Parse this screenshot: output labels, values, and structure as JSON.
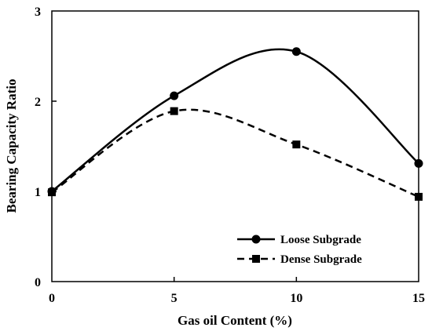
{
  "chart_data": {
    "type": "line",
    "title": "",
    "xlabel": "Gas  oil  Content  (%)",
    "ylabel": "Bearing  Capacity  Ratio",
    "xlim": [
      0,
      15
    ],
    "ylim": [
      0,
      3
    ],
    "x_ticks": [
      "0",
      "5",
      "10",
      "15"
    ],
    "y_ticks": [
      "0",
      "1",
      "2",
      "3"
    ],
    "x": [
      0,
      5,
      10,
      15
    ],
    "grid": false,
    "legend_position": "bottom-right",
    "series": [
      {
        "name": "Loose  Subgrade",
        "values": [
          1.0,
          2.06,
          2.55,
          1.31
        ],
        "line_style": "solid",
        "marker": "circle",
        "color": "#000000"
      },
      {
        "name": "Dense  Subgrade",
        "values": [
          0.99,
          1.89,
          1.52,
          0.94
        ],
        "line_style": "dashed",
        "marker": "square",
        "color": "#000000"
      }
    ]
  }
}
